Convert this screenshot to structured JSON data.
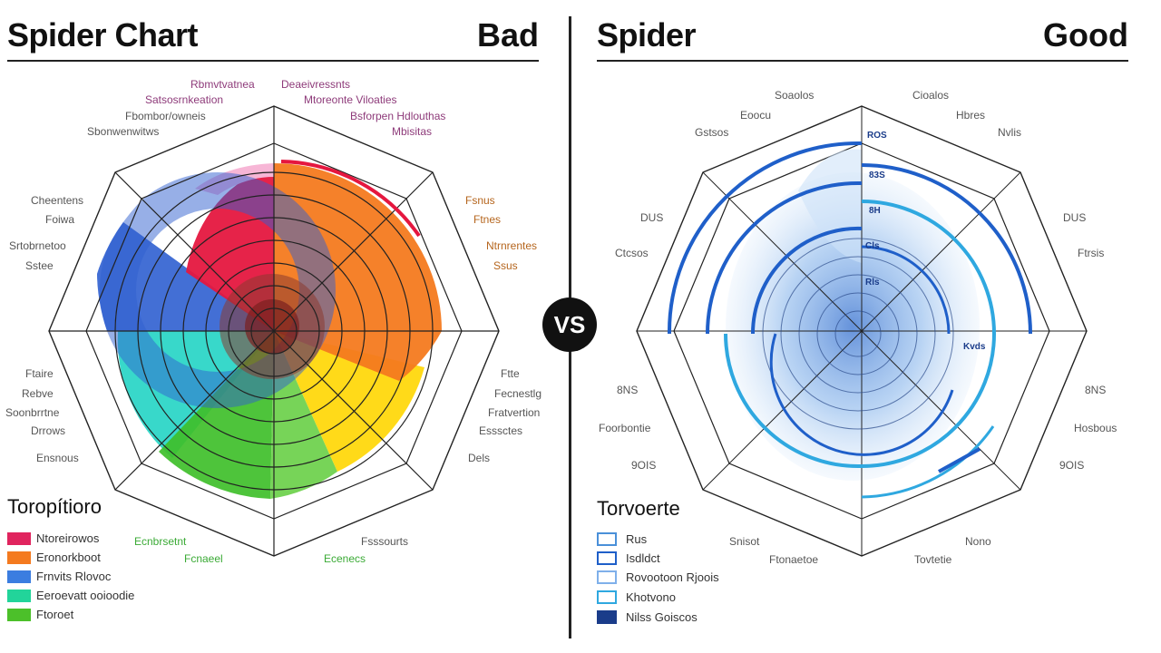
{
  "left": {
    "title": "Spider Chart",
    "verdict": "Bad",
    "labels": [
      {
        "text": "Rbmvtvatnea",
        "color": "#8e3b7a"
      },
      {
        "text": "Deaeivressnts",
        "color": "#8e3b7a"
      },
      {
        "text": "Satsosrnkeation",
        "color": "#8e3b7a"
      },
      {
        "text": "Mtoreonte Viloaties",
        "color": "#8e3b7a"
      },
      {
        "text": "Fbombor/owneis",
        "color": "#555"
      },
      {
        "text": "Bsforpen Hdlouthas",
        "color": "#8e3b7a"
      },
      {
        "text": "Sbonwenwitws",
        "color": "#555"
      },
      {
        "text": "Mbisitas",
        "color": "#8e3b7a"
      },
      {
        "text": "Cheentens",
        "color": "#555"
      },
      {
        "text": "Foiwa",
        "color": "#555"
      },
      {
        "text": "Srtobrnetoo",
        "color": "#555"
      },
      {
        "text": "Sstee",
        "color": "#555"
      },
      {
        "text": "Fsnus",
        "color": "#b5651d"
      },
      {
        "text": "Ftnes",
        "color": "#b5651d"
      },
      {
        "text": "Ntrnrentes",
        "color": "#b5651d"
      },
      {
        "text": "Ssus",
        "color": "#b5651d"
      },
      {
        "text": "Ftaire",
        "color": "#555"
      },
      {
        "text": "Rebve",
        "color": "#555"
      },
      {
        "text": "Soonbrrtne",
        "color": "#555"
      },
      {
        "text": "Drrows",
        "color": "#555"
      },
      {
        "text": "Ensnous",
        "color": "#555"
      },
      {
        "text": "Ftte",
        "color": "#555"
      },
      {
        "text": "Fecnestlg",
        "color": "#555"
      },
      {
        "text": "Fratvertion",
        "color": "#555"
      },
      {
        "text": "Esssctes",
        "color": "#555"
      },
      {
        "text": "Dels",
        "color": "#555"
      },
      {
        "text": "Ecnbrsetnt",
        "color": "#3aaa35"
      },
      {
        "text": "Fcnaeel",
        "color": "#3aaa35"
      },
      {
        "text": "Fsssourts",
        "color": "#555"
      },
      {
        "text": "Ecenecs",
        "color": "#3aaa35"
      }
    ],
    "legend": {
      "title": "Toropítioro",
      "items": [
        {
          "label": "Ntoreirowos",
          "color": "#e0245e"
        },
        {
          "label": "Eronorkboot",
          "color": "#f47a1f"
        },
        {
          "label": "Frnvits Rlovoc",
          "color": "#3b7de0"
        },
        {
          "label": "Eeroevatt ooioodie",
          "color": "#22d49a"
        },
        {
          "label": "Ftoroet",
          "color": "#4cc02a"
        }
      ]
    }
  },
  "right": {
    "title": "Spider",
    "verdict": "Good",
    "labels": [
      {
        "text": "Soaolos",
        "color": "#555"
      },
      {
        "text": "Cioalos",
        "color": "#555"
      },
      {
        "text": "Eoocu",
        "color": "#555"
      },
      {
        "text": "Hbres",
        "color": "#555"
      },
      {
        "text": "Gstsos",
        "color": "#555"
      },
      {
        "text": "Nvlis",
        "color": "#555"
      },
      {
        "text": "DUS",
        "color": "#555"
      },
      {
        "text": "DUS",
        "color": "#555"
      },
      {
        "text": "Ctcsos",
        "color": "#555"
      },
      {
        "text": "Ftrsis",
        "color": "#555"
      },
      {
        "text": "8NS",
        "color": "#555"
      },
      {
        "text": "8NS",
        "color": "#555"
      },
      {
        "text": "Foorbontie",
        "color": "#555"
      },
      {
        "text": "Hosbous",
        "color": "#555"
      },
      {
        "text": "9OIS",
        "color": "#555"
      },
      {
        "text": "9OIS",
        "color": "#555"
      },
      {
        "text": "Snisot",
        "color": "#555"
      },
      {
        "text": "Nono",
        "color": "#555"
      },
      {
        "text": "Ftonaetoe",
        "color": "#555"
      },
      {
        "text": "Tovtetie",
        "color": "#555"
      }
    ],
    "ring_labels": [
      {
        "text": "ROS",
        "color": "#1a3c8a"
      },
      {
        "text": "83S",
        "color": "#1a3c8a"
      },
      {
        "text": "8H",
        "color": "#1a3c8a"
      },
      {
        "text": "Cls",
        "color": "#1a3c8a"
      },
      {
        "text": "Rls",
        "color": "#1a3c8a"
      },
      {
        "text": "Kvds",
        "color": "#1a3c8a"
      }
    ],
    "legend": {
      "title": "Torvoerte",
      "items": [
        {
          "label": "Rus",
          "icon": "outline-icon"
        },
        {
          "label": "Isdldct",
          "icon": "outline-icon"
        },
        {
          "label": "Rovootoon Rjoois",
          "icon": "outline-icon"
        },
        {
          "label": "Khotvono",
          "icon": "outline-icon"
        },
        {
          "label": "Nilss Goiscos",
          "icon": "outline-icon"
        }
      ]
    }
  },
  "vs_label": "VS",
  "colors": {
    "red": "#e5173f",
    "orange": "#f47a1f",
    "yellow": "#ffd600",
    "green": "#3fbf2a",
    "teal": "#22d4c4",
    "blue": "#2f5fd0",
    "pink": "#f7b6d6",
    "ring_blue": "#1f5fc9",
    "light_blue": "#9ec5f0"
  }
}
